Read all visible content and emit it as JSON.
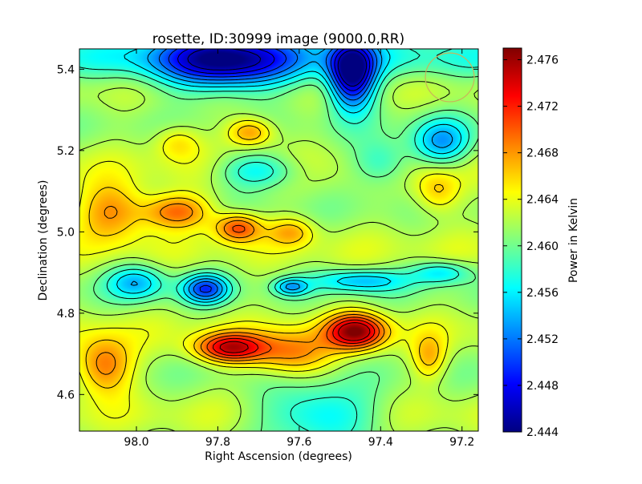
{
  "chart_data": {
    "type": "heatmap",
    "title": "rosette, ID:30999 image (9000.0,RR)",
    "xlabel": "Right Ascension (degrees)",
    "ylabel": "Declination (degrees)",
    "xlim": [
      98.14,
      97.16
    ],
    "ylim": [
      4.51,
      5.45
    ],
    "x_ticks": [
      {
        "value": 98.0,
        "label": "98.0"
      },
      {
        "value": 97.8,
        "label": "97.8"
      },
      {
        "value": 97.6,
        "label": "97.6"
      },
      {
        "value": 97.4,
        "label": "97.4"
      },
      {
        "value": 97.2,
        "label": "97.2"
      }
    ],
    "y_ticks": [
      {
        "value": 4.6,
        "label": "4.6"
      },
      {
        "value": 4.8,
        "label": "4.8"
      },
      {
        "value": 5.0,
        "label": "5.0"
      },
      {
        "value": 5.2,
        "label": "5.2"
      },
      {
        "value": 5.4,
        "label": "5.4"
      }
    ],
    "colorbar": {
      "label": "Power in Kelvin",
      "colormap": "jet",
      "range": [
        2.444,
        2.477
      ],
      "ticks": [
        {
          "value": 2.444,
          "label": "2.444"
        },
        {
          "value": 2.448,
          "label": "2.448"
        },
        {
          "value": 2.452,
          "label": "2.452"
        },
        {
          "value": 2.456,
          "label": "2.456"
        },
        {
          "value": 2.46,
          "label": "2.460"
        },
        {
          "value": 2.464,
          "label": "2.464"
        },
        {
          "value": 2.468,
          "label": "2.468"
        },
        {
          "value": 2.472,
          "label": "2.472"
        },
        {
          "value": 2.476,
          "label": "2.476"
        }
      ]
    },
    "contours": "on",
    "beam_circle": {
      "ra": 97.23,
      "dec": 5.38,
      "radius_deg": 0.06,
      "color": "#c8b45a"
    },
    "features": [
      {
        "kind": "max",
        "ra": 97.46,
        "dec": 4.755,
        "value": 2.476,
        "spread_ra": 0.05,
        "spread_dec": 0.03
      },
      {
        "kind": "max",
        "ra": 97.77,
        "dec": 4.715,
        "value": 2.474,
        "spread_ra": 0.06,
        "spread_dec": 0.025
      },
      {
        "kind": "max",
        "ra": 98.08,
        "dec": 4.67,
        "value": 2.47,
        "spread_ra": 0.05,
        "spread_dec": 0.05
      },
      {
        "kind": "max",
        "ra": 97.62,
        "dec": 4.7,
        "value": 2.469,
        "spread_ra": 0.07,
        "spread_dec": 0.04
      },
      {
        "kind": "max",
        "ra": 97.28,
        "dec": 4.69,
        "value": 2.467,
        "spread_ra": 0.03,
        "spread_dec": 0.04
      },
      {
        "kind": "max",
        "ra": 97.75,
        "dec": 5.01,
        "value": 2.471,
        "spread_ra": 0.04,
        "spread_dec": 0.025
      },
      {
        "kind": "max",
        "ra": 97.9,
        "dec": 5.05,
        "value": 2.47,
        "spread_ra": 0.06,
        "spread_dec": 0.03
      },
      {
        "kind": "max",
        "ra": 98.06,
        "dec": 5.05,
        "value": 2.469,
        "spread_ra": 0.06,
        "spread_dec": 0.05
      },
      {
        "kind": "max",
        "ra": 97.62,
        "dec": 5.0,
        "value": 2.467,
        "spread_ra": 0.04,
        "spread_dec": 0.025
      },
      {
        "kind": "max",
        "ra": 97.26,
        "dec": 5.1,
        "value": 2.467,
        "spread_ra": 0.04,
        "spread_dec": 0.04
      },
      {
        "kind": "max",
        "ra": 97.72,
        "dec": 5.245,
        "value": 2.469,
        "spread_ra": 0.04,
        "spread_dec": 0.025
      },
      {
        "kind": "max",
        "ra": 97.9,
        "dec": 5.22,
        "value": 2.466,
        "spread_ra": 0.04,
        "spread_dec": 0.03
      },
      {
        "kind": "min",
        "ra": 97.83,
        "dec": 4.86,
        "value": 2.451,
        "spread_ra": 0.04,
        "spread_dec": 0.025
      },
      {
        "kind": "min",
        "ra": 98.0,
        "dec": 4.875,
        "value": 2.455,
        "spread_ra": 0.05,
        "spread_dec": 0.03
      },
      {
        "kind": "min",
        "ra": 97.45,
        "dec": 4.88,
        "value": 2.455,
        "spread_ra": 0.08,
        "spread_dec": 0.02
      },
      {
        "kind": "min",
        "ra": 97.25,
        "dec": 4.9,
        "value": 2.456,
        "spread_ra": 0.05,
        "spread_dec": 0.02
      },
      {
        "kind": "min",
        "ra": 97.62,
        "dec": 4.865,
        "value": 2.455,
        "spread_ra": 0.03,
        "spread_dec": 0.015
      },
      {
        "kind": "min",
        "ra": 97.7,
        "dec": 5.15,
        "value": 2.456,
        "spread_ra": 0.07,
        "spread_dec": 0.03
      },
      {
        "kind": "min",
        "ra": 97.4,
        "dec": 5.17,
        "value": 2.457,
        "spread_ra": 0.05,
        "spread_dec": 0.04
      },
      {
        "kind": "min",
        "ra": 97.25,
        "dec": 5.22,
        "value": 2.454,
        "spread_ra": 0.05,
        "spread_dec": 0.04
      },
      {
        "kind": "min",
        "ra": 97.55,
        "dec": 4.55,
        "value": 2.455,
        "spread_ra": 0.1,
        "spread_dec": 0.05
      },
      {
        "kind": "min",
        "ra": 97.47,
        "dec": 5.39,
        "value": 2.444,
        "spread_ra": 0.04,
        "spread_dec": 0.06
      },
      {
        "kind": "min",
        "ra": 97.78,
        "dec": 5.42,
        "value": 2.447,
        "spread_ra": 0.12,
        "spread_dec": 0.05
      }
    ]
  }
}
